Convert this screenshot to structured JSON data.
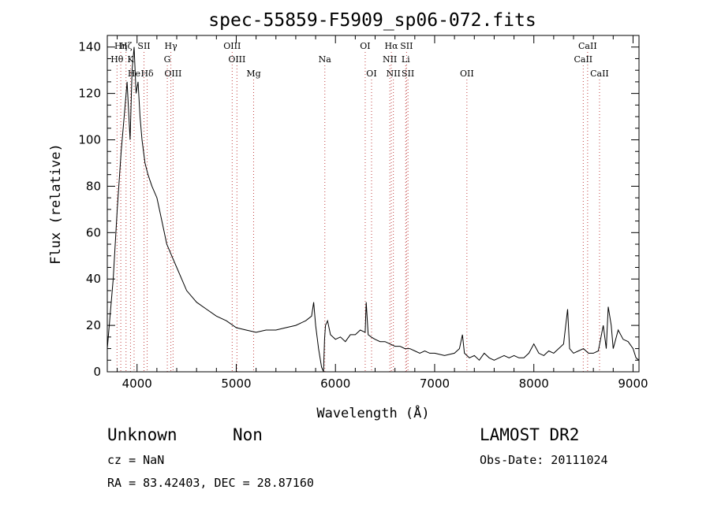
{
  "chart_data": {
    "type": "line",
    "title": "spec-55859-F5909_sp06-072.fits",
    "xlabel": "Wavelength (Å)",
    "ylabel": "Flux (relative)",
    "xlim": [
      3700,
      9060
    ],
    "ylim": [
      0,
      145
    ],
    "xticks": [
      4000,
      5000,
      6000,
      7000,
      8000,
      9000
    ],
    "yticks": [
      0,
      20,
      40,
      60,
      80,
      100,
      120,
      140
    ],
    "grid": false,
    "legend": "none",
    "series": [
      {
        "x": [
          3700,
          3760,
          3800,
          3840,
          3870,
          3900,
          3930,
          3950,
          3970,
          3990,
          4010,
          4030,
          4050,
          4080,
          4110,
          4150,
          4200,
          4250,
          4300,
          4350,
          4400,
          4450,
          4500,
          4600,
          4700,
          4800,
          4900,
          5000,
          5100,
          5200,
          5300,
          5400,
          5500,
          5600,
          5700,
          5760,
          5780,
          5800,
          5830,
          5860,
          5870,
          5880,
          5890,
          5900,
          5920,
          5950,
          6000,
          6050,
          6100,
          6150,
          6200,
          6250,
          6300,
          6310,
          6330,
          6360,
          6400,
          6450,
          6500,
          6550,
          6600,
          6650,
          6700,
          6750,
          6800,
          6850,
          6900,
          6950,
          7000,
          7100,
          7200,
          7250,
          7280,
          7300,
          7350,
          7400,
          7450,
          7500,
          7550,
          7600,
          7650,
          7700,
          7750,
          7800,
          7850,
          7900,
          7950,
          8000,
          8050,
          8100,
          8150,
          8200,
          8250,
          8300,
          8340,
          8360,
          8400,
          8450,
          8500,
          8550,
          8600,
          8650,
          8700,
          8730,
          8750,
          8780,
          8800,
          8850,
          8900,
          8950,
          9000,
          9030,
          9060
        ],
        "y": [
          10,
          40,
          70,
          95,
          110,
          125,
          100,
          130,
          140,
          120,
          125,
          110,
          100,
          90,
          85,
          80,
          75,
          65,
          55,
          50,
          45,
          40,
          35,
          30,
          27,
          24,
          22,
          19,
          18,
          17,
          18,
          18,
          19,
          20,
          22,
          24,
          30,
          20,
          10,
          2,
          1,
          0,
          14,
          20,
          22,
          16,
          14,
          15,
          13,
          16,
          16,
          18,
          17,
          30,
          16,
          15,
          14,
          13,
          13,
          12,
          11,
          11,
          10,
          10,
          9,
          8,
          9,
          8,
          8,
          7,
          8,
          10,
          16,
          8,
          6,
          7,
          5,
          8,
          6,
          5,
          6,
          7,
          6,
          7,
          6,
          6,
          8,
          12,
          8,
          7,
          9,
          8,
          10,
          12,
          27,
          10,
          8,
          9,
          10,
          8,
          8,
          9,
          20,
          10,
          28,
          20,
          10,
          18,
          14,
          13,
          10,
          6,
          5
        ]
      }
    ],
    "lines": [
      {
        "row": 0,
        "labels": [
          {
            "text": "Hη",
            "x": 3836
          },
          {
            "text": "Hζ",
            "x": 3889
          },
          {
            "text": "SII",
            "x": 4070
          },
          {
            "text": "Hγ",
            "x": 4341
          },
          {
            "text": "OIII",
            "x": 4959
          },
          {
            "text": "OI",
            "x": 6300
          },
          {
            "text": "Hα",
            "x": 6563
          },
          {
            "text": "SII",
            "x": 6717
          },
          {
            "text": "CaII",
            "x": 8542
          }
        ]
      },
      {
        "row": 1,
        "labels": [
          {
            "text": "Hθ",
            "x": 3798
          },
          {
            "text": "K",
            "x": 3934
          },
          {
            "text": "G",
            "x": 4305
          },
          {
            "text": "OIII",
            "x": 5007
          },
          {
            "text": "Na",
            "x": 5893
          },
          {
            "text": "NII",
            "x": 6548
          },
          {
            "text": "Li",
            "x": 6708
          },
          {
            "text": "CaII",
            "x": 8498
          }
        ]
      },
      {
        "row": 2,
        "labels": [
          {
            "text": "He",
            "x": 3970
          },
          {
            "text": "Hδ",
            "x": 4102
          },
          {
            "text": "OIII",
            "x": 4363
          },
          {
            "text": "Mg",
            "x": 5175
          },
          {
            "text": "OI",
            "x": 6364
          },
          {
            "text": "NII",
            "x": 6584
          },
          {
            "text": "SII",
            "x": 6731
          },
          {
            "text": "OII",
            "x": 7325
          },
          {
            "text": "CaII",
            "x": 8662
          }
        ]
      }
    ]
  },
  "info": {
    "class": "Unknown",
    "subclass": "Non",
    "survey": "LAMOST DR2",
    "cz": "cz = NaN",
    "obs_date": "Obs-Date: 20111024",
    "coords": "RA =  83.42403, DEC =  28.87160"
  }
}
